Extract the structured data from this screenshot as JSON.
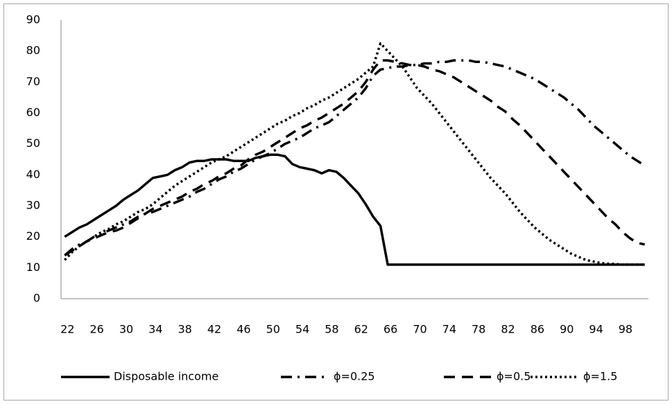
{
  "chart_data": {
    "type": "line",
    "x": [
      22,
      23,
      24,
      25,
      26,
      27,
      28,
      29,
      30,
      31,
      32,
      33,
      34,
      35,
      36,
      37,
      38,
      39,
      40,
      41,
      42,
      43,
      44,
      45,
      46,
      47,
      48,
      49,
      50,
      51,
      52,
      53,
      54,
      55,
      56,
      57,
      58,
      59,
      60,
      61,
      62,
      63,
      64,
      65,
      66,
      67,
      68,
      69,
      70,
      71,
      72,
      73,
      74,
      75,
      76,
      77,
      78,
      79,
      80,
      81,
      82,
      83,
      84,
      85,
      86,
      87,
      88,
      89,
      90,
      91,
      92,
      93,
      94,
      95,
      96,
      97,
      98,
      99,
      100,
      101
    ],
    "xlim": [
      21.5,
      101.5
    ],
    "xticks": [
      22,
      26,
      30,
      34,
      38,
      42,
      46,
      50,
      54,
      58,
      62,
      66,
      70,
      74,
      78,
      82,
      86,
      90,
      94,
      98
    ],
    "ylim": [
      0,
      90
    ],
    "yticks": [
      0,
      10,
      20,
      30,
      40,
      50,
      60,
      70,
      80,
      90
    ],
    "grid": false,
    "legend": "bottom",
    "series": [
      {
        "name": "Disposable income",
        "color": "#000000",
        "dash": "solid",
        "values": [
          20,
          21.5,
          23,
          24,
          25.5,
          27,
          28.5,
          30,
          32,
          33.5,
          35,
          37,
          39,
          39.5,
          40,
          41.5,
          42.5,
          44,
          44.5,
          44.5,
          45,
          45,
          45,
          44.5,
          44.5,
          44.5,
          45.5,
          46,
          46.5,
          46.5,
          46,
          43.5,
          42.5,
          42,
          41.5,
          40.5,
          41.5,
          41,
          39,
          36.5,
          34,
          30.5,
          26.5,
          23.5,
          11,
          11,
          11,
          11,
          11,
          11,
          11,
          11,
          11,
          11,
          11,
          11,
          11,
          11,
          11,
          11,
          11,
          11,
          11,
          11,
          11,
          11,
          11,
          11,
          11,
          11,
          11,
          11,
          11,
          11,
          11,
          11,
          11,
          11,
          11,
          11
        ]
      },
      {
        "name": "ϕ=0.25",
        "color": "#000000",
        "dash": "dashdot",
        "values": [
          14,
          16,
          17.5,
          18.5,
          20,
          21,
          22,
          23,
          24,
          25,
          26.5,
          27.5,
          28,
          29,
          30,
          31,
          32,
          33,
          34.5,
          35.5,
          37,
          38.5,
          39.5,
          41,
          42,
          43.5,
          45,
          46,
          47,
          48.5,
          50,
          51,
          52,
          53.5,
          55,
          56,
          57,
          59,
          61,
          63,
          65,
          68,
          72,
          74,
          74.5,
          75,
          75,
          75.5,
          75.5,
          76,
          76,
          76.5,
          76.5,
          77,
          77,
          77,
          76.5,
          76.5,
          76,
          75.5,
          75,
          74,
          73,
          72,
          71,
          69.5,
          68,
          66.5,
          65,
          63,
          61,
          58.5,
          56,
          54,
          52,
          50,
          48,
          46,
          44.5,
          43
        ]
      },
      {
        "name": "ϕ=0.5",
        "color": "#000000",
        "dash": "dash",
        "values": [
          14,
          15.5,
          17,
          18.5,
          19.5,
          20.5,
          21.5,
          22,
          23,
          24.5,
          26,
          27.5,
          29,
          30,
          31,
          32,
          33,
          34.5,
          35.5,
          37,
          38,
          39.5,
          40.5,
          42,
          43,
          45,
          46.5,
          47.5,
          49,
          50.5,
          52,
          53.5,
          55,
          56,
          57.5,
          58.5,
          60,
          61.5,
          63,
          65,
          67,
          70,
          74,
          77,
          77,
          76.5,
          76,
          75.5,
          75.5,
          75,
          74,
          73.5,
          72.5,
          71.5,
          70,
          68.5,
          67,
          65.5,
          64,
          62,
          60.5,
          58,
          56,
          53.5,
          51,
          48.5,
          46,
          43.5,
          41,
          38.5,
          36,
          33.5,
          31,
          28.5,
          26,
          24,
          21.5,
          19.5,
          18,
          17.5
        ]
      },
      {
        "name": "ϕ=1.5",
        "color": "#000000",
        "dash": "dot",
        "values": [
          12.5,
          15,
          17,
          18.5,
          20,
          21.5,
          22.5,
          24,
          25,
          26.5,
          28,
          29,
          30.5,
          32.5,
          34.5,
          36.5,
          38,
          39.5,
          41,
          42.5,
          44,
          45,
          46,
          47.5,
          49,
          50.5,
          52,
          53.5,
          55,
          56.5,
          57.5,
          59,
          60,
          61.5,
          62.5,
          64,
          65,
          66.5,
          68,
          69.5,
          71,
          73,
          75,
          82.5,
          80,
          77.5,
          75,
          71.5,
          68,
          65.5,
          63,
          60,
          57,
          54,
          51,
          48,
          45,
          42,
          39,
          36.5,
          34,
          31,
          28,
          25.5,
          23,
          21,
          19,
          17.5,
          16,
          14.5,
          13.5,
          12.5,
          12,
          11.5,
          11.3,
          11.2,
          11,
          11,
          11,
          11
        ]
      }
    ]
  }
}
